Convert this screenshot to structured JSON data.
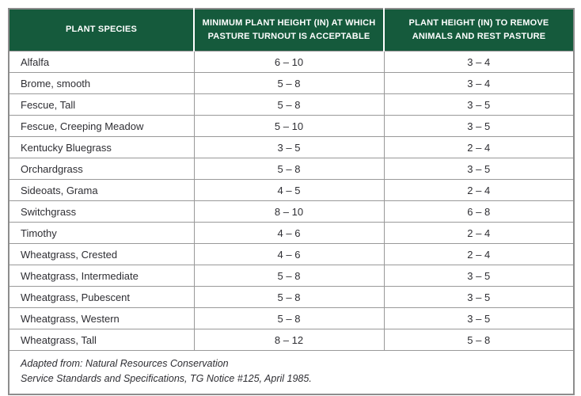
{
  "colors": {
    "header_bg": "#155A3C",
    "header_text": "#FFFFFF",
    "body_text": "#2E2E33",
    "grid_border": "#999999",
    "outer_border": "#8D8D8D"
  },
  "chart_data": {
    "type": "table",
    "columns": [
      "PLANT SPECIES",
      "MINIMUM PLANT HEIGHT (IN) AT WHICH PASTURE TURNOUT IS ACCEPTABLE",
      "PLANT HEIGHT (IN) TO REMOVE ANIMALS AND REST PASTURE"
    ],
    "rows": [
      [
        "Alfalfa",
        "6 – 10",
        "3 – 4"
      ],
      [
        "Brome, smooth",
        "5 – 8",
        "3 – 4"
      ],
      [
        "Fescue, Tall",
        "5 – 8",
        "3 – 5"
      ],
      [
        "Fescue, Creeping Meadow",
        "5 – 10",
        "3 – 5"
      ],
      [
        "Kentucky Bluegrass",
        "3 – 5",
        "2 – 4"
      ],
      [
        "Orchardgrass",
        "5 – 8",
        "3 – 5"
      ],
      [
        "Sideoats, Grama",
        "4 – 5",
        "2 – 4"
      ],
      [
        "Switchgrass",
        "8 – 10",
        "6 – 8"
      ],
      [
        "Timothy",
        "4 – 6",
        "2 – 4"
      ],
      [
        "Wheatgrass, Crested",
        "4 – 6",
        "2 – 4"
      ],
      [
        "Wheatgrass, Intermediate",
        "5 – 8",
        "3 – 5"
      ],
      [
        "Wheatgrass, Pubescent",
        "5 – 8",
        "3 – 5"
      ],
      [
        "Wheatgrass, Western",
        "5 – 8",
        "3 – 5"
      ],
      [
        "Wheatgrass, Tall",
        "8 – 12",
        "5 – 8"
      ]
    ],
    "footnote_lines": [
      "Adapted from: Natural Resources Conservation",
      "Service Standards and Specifications, TG Notice #125, April 1985."
    ]
  }
}
